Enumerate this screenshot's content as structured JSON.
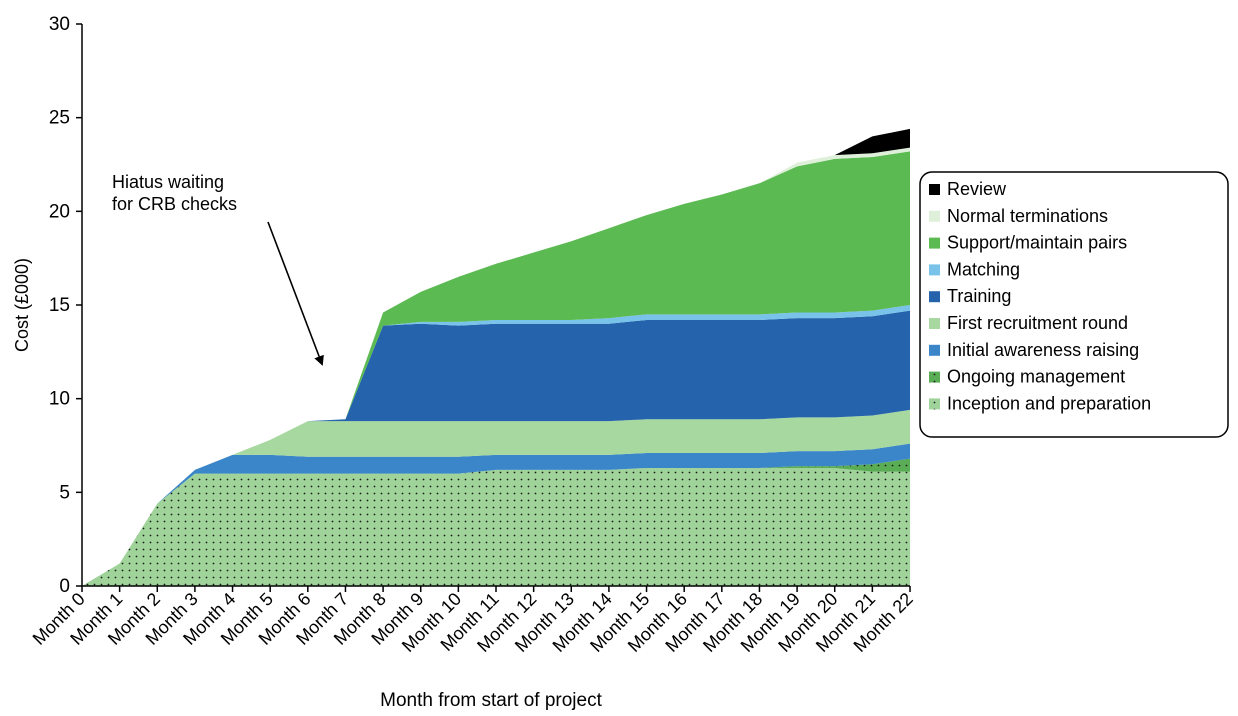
{
  "chart_data": {
    "type": "area",
    "stacked": true,
    "title": "",
    "xlabel": "Month from start of project",
    "ylabel": "Cost (£000)",
    "ylim": [
      0,
      30
    ],
    "yticks": [
      0,
      5,
      10,
      15,
      20,
      25,
      30
    ],
    "categories": [
      "Month 0",
      "Month 1",
      "Month 2",
      "Month 3",
      "Month 4",
      "Month 5",
      "Month 6",
      "Month 7",
      "Month 8",
      "Month 9",
      "Month 10",
      "Month 11",
      "Month 12",
      "Month 13",
      "Month 14",
      "Month 15",
      "Month 16",
      "Month 17",
      "Month 18",
      "Month 19",
      "Month 20",
      "Month 21",
      "Month 22"
    ],
    "legend_position": "right",
    "annotation": {
      "text_lines": [
        "Hiatus waiting",
        "for CRB checks"
      ],
      "points_to": "Month 7"
    },
    "series": [
      {
        "name": "Inception and preparation",
        "color": "#9fd39a",
        "pattern": "dots",
        "values": [
          0,
          1.2,
          4.4,
          6.0,
          6.0,
          6.0,
          6.0,
          6.0,
          6.0,
          6.0,
          6.0,
          6.2,
          6.2,
          6.2,
          6.2,
          6.3,
          6.3,
          6.3,
          6.3,
          6.3,
          6.3,
          6.1,
          6.1
        ]
      },
      {
        "name": "Ongoing management",
        "color": "#5aad55",
        "pattern": "dots",
        "values": [
          0,
          0,
          0,
          0,
          0,
          0,
          0,
          0,
          0,
          0,
          0,
          0,
          0,
          0,
          0,
          0,
          0,
          0,
          0,
          0.1,
          0.1,
          0.4,
          0.7
        ]
      },
      {
        "name": "Initial awareness raising",
        "color": "#3b86c9",
        "values": [
          0,
          0,
          0,
          0.2,
          1.0,
          1.0,
          0.9,
          0.9,
          0.9,
          0.9,
          0.9,
          0.8,
          0.8,
          0.8,
          0.8,
          0.8,
          0.8,
          0.8,
          0.8,
          0.8,
          0.8,
          0.8,
          0.8
        ]
      },
      {
        "name": "First recruitment round",
        "color": "#a6d8a0",
        "values": [
          0,
          0,
          0,
          0,
          0,
          0.8,
          1.9,
          1.9,
          1.9,
          1.9,
          1.9,
          1.8,
          1.8,
          1.8,
          1.8,
          1.8,
          1.8,
          1.8,
          1.8,
          1.8,
          1.8,
          1.8,
          1.8
        ]
      },
      {
        "name": "Training",
        "color": "#2563ac",
        "values": [
          0,
          0,
          0,
          0,
          0,
          0,
          0,
          0.1,
          5.1,
          5.2,
          5.1,
          5.2,
          5.2,
          5.2,
          5.2,
          5.3,
          5.3,
          5.3,
          5.3,
          5.3,
          5.3,
          5.3,
          5.3
        ]
      },
      {
        "name": "Matching",
        "color": "#79c2ea",
        "values": [
          0,
          0,
          0,
          0,
          0,
          0,
          0,
          0,
          0,
          0.1,
          0.2,
          0.2,
          0.2,
          0.2,
          0.3,
          0.3,
          0.3,
          0.3,
          0.3,
          0.3,
          0.3,
          0.3,
          0.3
        ]
      },
      {
        "name": "Support/maintain pairs",
        "color": "#5cba52",
        "values": [
          0,
          0,
          0,
          0,
          0,
          0,
          0,
          0,
          0.7,
          1.6,
          2.4,
          3.0,
          3.6,
          4.2,
          4.8,
          5.3,
          5.9,
          6.4,
          7.0,
          7.8,
          8.2,
          8.2,
          8.2
        ]
      },
      {
        "name": "Normal terminations",
        "color": "#dff0da",
        "values": [
          0,
          0,
          0,
          0,
          0,
          0,
          0,
          0,
          0,
          0,
          0,
          0,
          0,
          0,
          0,
          0,
          0,
          0,
          0,
          0.2,
          0.2,
          0.2,
          0.2
        ]
      },
      {
        "name": "Review",
        "color": "#000000",
        "values": [
          0,
          0,
          0,
          0,
          0,
          0,
          0,
          0,
          0,
          0,
          0,
          0,
          0,
          0,
          0,
          0,
          0,
          0,
          0,
          0,
          0,
          0.9,
          1.0
        ]
      }
    ],
    "legend_order": [
      "Review",
      "Normal terminations",
      "Support/maintain pairs",
      "Matching",
      "Training",
      "First recruitment round",
      "Initial awareness raising",
      "Ongoing management",
      "Inception and preparation"
    ]
  }
}
